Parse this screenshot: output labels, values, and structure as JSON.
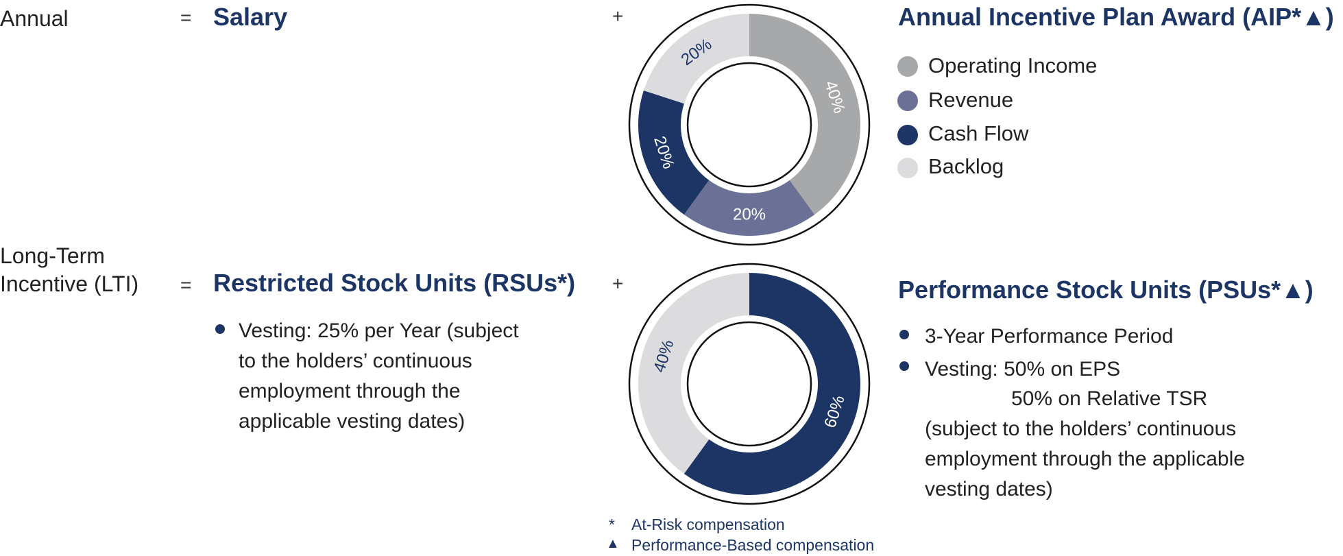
{
  "rows": {
    "annual": {
      "label": "Annual",
      "equals": "=",
      "fixed_title": "Salary",
      "plus": "+",
      "incentive_title": "Annual Incentive Plan Award (AIP*▲)"
    },
    "lti": {
      "label_line1": "Long-Term",
      "label_line2": "Incentive (LTI)",
      "equals": "=",
      "fixed_title": "Restricted Stock Units (RSUs*)",
      "plus": "+",
      "rsu_text": [
        "Vesting: 25% per Year (subject",
        "to the holders’ continuous",
        "employment through the",
        "applicable vesting dates)"
      ],
      "incentive_title": "Performance Stock Units (PSUs*▲)",
      "psu_bullet1": "3-Year Performance Period",
      "psu_bullet2_lines": [
        "Vesting: 50% on EPS",
        "50% on Relative TSR",
        "(subject to the holders’ continuous",
        "employment through the applicable",
        "vesting dates)"
      ]
    }
  },
  "chart_data": [
    {
      "type": "pie",
      "variant": "donut",
      "categories": [
        "Operating Income",
        "Revenue",
        "Cash Flow",
        "Backlog"
      ],
      "values": [
        40,
        20,
        20,
        20
      ],
      "labels": [
        "40%",
        "20%",
        "20%",
        "20%"
      ],
      "colors": [
        "#a7a8aa",
        "#6b7096",
        "#1c3565",
        "#dcdcde"
      ],
      "label_colors": [
        "#ffffff",
        "#ffffff",
        "#ffffff",
        "#1c3565"
      ],
      "legend_placement": "right"
    },
    {
      "type": "pie",
      "variant": "donut",
      "categories": [
        "",
        ""
      ],
      "values": [
        60,
        40
      ],
      "labels": [
        "60%",
        "40%"
      ],
      "colors": [
        "#1c3565",
        "#dcdcde"
      ],
      "label_colors": [
        "#ffffff",
        "#1c3565"
      ]
    }
  ],
  "legend": {
    "items": [
      {
        "label": "Operating Income",
        "color": "#a7a8aa"
      },
      {
        "label": "Revenue",
        "color": "#6b7096"
      },
      {
        "label": "Cash Flow",
        "color": "#1c3565"
      },
      {
        "label": "Backlog",
        "color": "#dcdcde"
      }
    ]
  },
  "footnotes": {
    "star_symbol": "*",
    "star_text": "At-Risk compensation",
    "triangle_symbol": "▲",
    "triangle_text": "Performance-Based compensation"
  }
}
